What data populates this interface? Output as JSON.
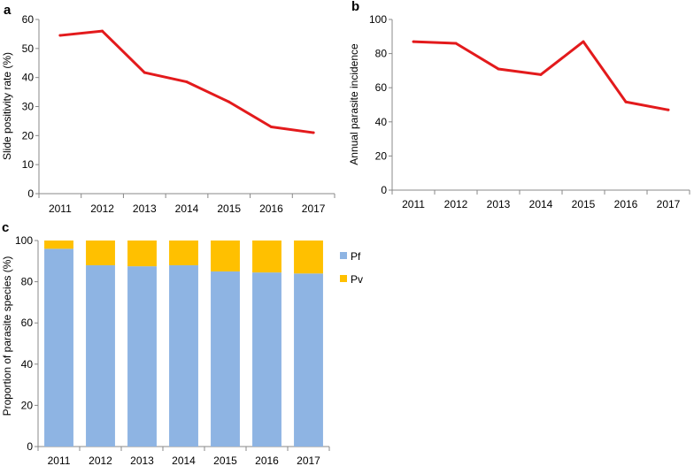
{
  "chart_data": [
    {
      "panel": "a",
      "type": "line",
      "categories": [
        "2011",
        "2012",
        "2013",
        "2014",
        "2015",
        "2016",
        "2017"
      ],
      "series": [
        {
          "name": "Slide positivity rate",
          "values": [
            54.5,
            56,
            41.7,
            38.5,
            31.6,
            23,
            21
          ],
          "color": "#e31a1c"
        }
      ],
      "xlabel": "",
      "ylabel": "Slide positivity rate (%)",
      "ylim": [
        0,
        60
      ],
      "yticks": [
        0,
        10,
        20,
        30,
        40,
        50,
        60
      ]
    },
    {
      "panel": "b",
      "type": "line",
      "categories": [
        "2011",
        "2012",
        "2013",
        "2014",
        "2015",
        "2016",
        "2017"
      ],
      "series": [
        {
          "name": "Annual parasite incidence",
          "values": [
            87,
            86,
            71,
            67.7,
            87,
            51.7,
            47
          ],
          "color": "#e31a1c"
        }
      ],
      "xlabel": "",
      "ylabel": "Annual parasite incidence",
      "ylim": [
        0,
        100
      ],
      "yticks": [
        0,
        20,
        40,
        60,
        80,
        100
      ]
    },
    {
      "panel": "c",
      "type": "bar",
      "stacked": true,
      "categories": [
        "2011",
        "2012",
        "2013",
        "2014",
        "2015",
        "2016",
        "2017"
      ],
      "series": [
        {
          "name": "Pf",
          "values": [
            96,
            88,
            87.5,
            88,
            85,
            84.5,
            84
          ],
          "color": "#8eb4e3"
        },
        {
          "name": "Pv",
          "values": [
            4,
            12,
            12.5,
            12,
            15,
            15.5,
            16
          ],
          "color": "#ffc000"
        }
      ],
      "xlabel": "",
      "ylabel": "Proportion of parasite species (%)",
      "ylim": [
        0,
        100
      ],
      "yticks": [
        0,
        20,
        40,
        60,
        80,
        100
      ],
      "legend": "right"
    }
  ]
}
